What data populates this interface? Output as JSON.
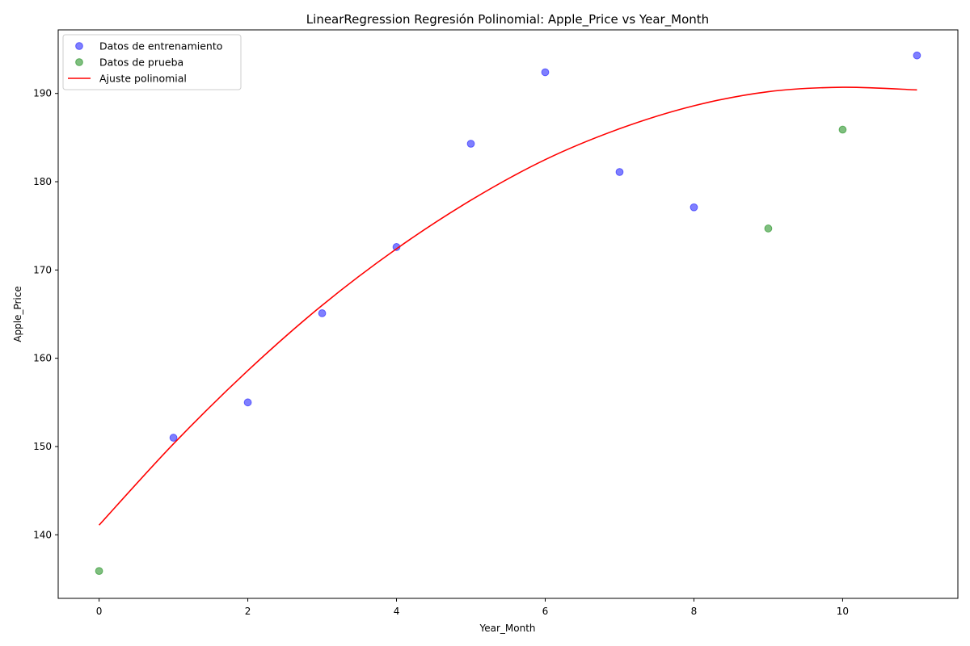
{
  "chart_data": {
    "type": "scatter",
    "title": "LinearRegression Regresión Polinomial: Apple_Price vs Year_Month",
    "xlabel": "Year_Month",
    "ylabel": "Apple_Price",
    "xlim": [
      -0.55,
      11.55
    ],
    "ylim": [
      132.8,
      197.2
    ],
    "xticks": [
      0,
      2,
      4,
      6,
      8,
      10
    ],
    "yticks": [
      140,
      150,
      160,
      170,
      180,
      190
    ],
    "grid": false,
    "legend_position": "upper-left",
    "series": [
      {
        "name": "Datos de entrenamiento",
        "kind": "scatter",
        "color": "#0000ff",
        "alpha": 0.5,
        "points": [
          {
            "x": 1,
            "y": 151.0
          },
          {
            "x": 2,
            "y": 155.0
          },
          {
            "x": 3,
            "y": 165.1
          },
          {
            "x": 4,
            "y": 172.6
          },
          {
            "x": 5,
            "y": 184.3
          },
          {
            "x": 6,
            "y": 192.4
          },
          {
            "x": 7,
            "y": 181.1
          },
          {
            "x": 8,
            "y": 177.1
          },
          {
            "x": 11,
            "y": 194.3
          }
        ]
      },
      {
        "name": "Datos de prueba",
        "kind": "scatter",
        "color": "#008000",
        "alpha": 0.5,
        "points": [
          {
            "x": 0,
            "y": 135.9
          },
          {
            "x": 9,
            "y": 174.7
          },
          {
            "x": 10,
            "y": 185.9
          }
        ]
      },
      {
        "name": "Ajuste polinomial",
        "kind": "line",
        "color": "#ff0000",
        "points": [
          {
            "x": 0,
            "y": 141.1
          },
          {
            "x": 1,
            "y": 150.3
          },
          {
            "x": 2,
            "y": 158.6
          },
          {
            "x": 3,
            "y": 166.0
          },
          {
            "x": 4,
            "y": 172.4
          },
          {
            "x": 5,
            "y": 177.9
          },
          {
            "x": 6,
            "y": 182.5
          },
          {
            "x": 7,
            "y": 186.0
          },
          {
            "x": 8,
            "y": 188.6
          },
          {
            "x": 9,
            "y": 190.2
          },
          {
            "x": 10,
            "y": 190.7
          },
          {
            "x": 11,
            "y": 190.4
          }
        ]
      }
    ]
  }
}
